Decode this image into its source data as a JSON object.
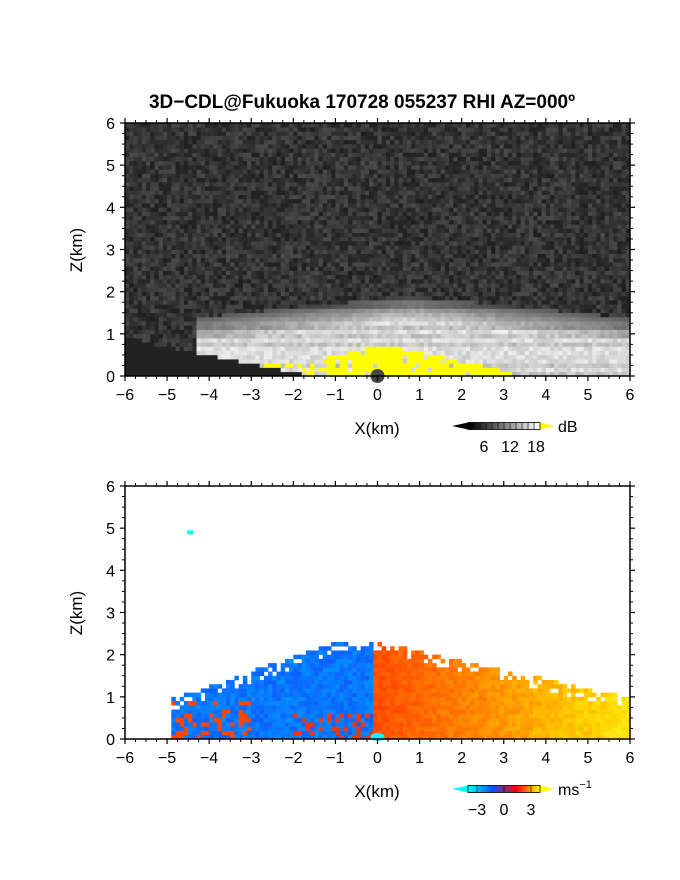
{
  "title": "3D−CDL@Fukuoka 170728 055237 RHI AZ=000º",
  "chart_data": [
    {
      "type": "heatmap",
      "quantity": "backscatter intensity",
      "xlabel": "X(km)",
      "ylabel": "Z(km)",
      "xlim": [
        -6,
        6
      ],
      "ylim": [
        0,
        6
      ],
      "xticks": [
        "−6",
        "−5",
        "−4",
        "−3",
        "−2",
        "−1",
        "0",
        "1",
        "2",
        "3",
        "4",
        "5",
        "6"
      ],
      "yticks": [
        "0",
        "1",
        "2",
        "3",
        "4",
        "5",
        "6"
      ],
      "colorbar": {
        "unit": "dB",
        "ticks": [
          "6",
          "12",
          "18"
        ],
        "colormap": [
          "#000000",
          "#ffffff",
          "#ffff00"
        ],
        "saturation_color": "#ffff00"
      },
      "layers": [
        {
          "x_range": [
            -6,
            6
          ],
          "z_range": [
            0,
            6
          ],
          "dB": 2,
          "description": "noise background"
        },
        {
          "x_range": [
            -4.3,
            6
          ],
          "z_range": [
            0.2,
            1.9
          ],
          "dB_max": 16
        },
        {
          "x_range": [
            -1.2,
            3.2
          ],
          "z_range": [
            0,
            0.75
          ],
          "dB": 20
        }
      ]
    },
    {
      "type": "heatmap",
      "quantity": "Doppler velocity",
      "xlabel": "X(km)",
      "ylabel": "Z(km)",
      "xlim": [
        -6,
        6
      ],
      "ylim": [
        0,
        6
      ],
      "xticks": [
        "−6",
        "−5",
        "−4",
        "−3",
        "−2",
        "−1",
        "0",
        "1",
        "2",
        "3",
        "4",
        "5",
        "6"
      ],
      "yticks": [
        "0",
        "1",
        "2",
        "3",
        "4",
        "5",
        "6"
      ],
      "colorbar": {
        "unit": "ms",
        "unit_exponent": "−1",
        "ticks": [
          "−3",
          "0",
          "3"
        ],
        "tick_values": [
          -3,
          0,
          3
        ],
        "colormap": [
          "#00ffff",
          "#0055ff",
          "#ff0000",
          "#ffff00"
        ]
      },
      "layers": [
        {
          "x_range": [
            -4.7,
            0
          ],
          "z_range": [
            0,
            2.4
          ],
          "velocity_ms": -2.5
        },
        {
          "x_range": [
            0,
            6
          ],
          "z_range": [
            0,
            2.4
          ],
          "velocity_ms": 2.0
        }
      ],
      "isolated_points": [
        {
          "x": -4.45,
          "z": 4.9,
          "velocity_ms": -4
        }
      ]
    }
  ]
}
